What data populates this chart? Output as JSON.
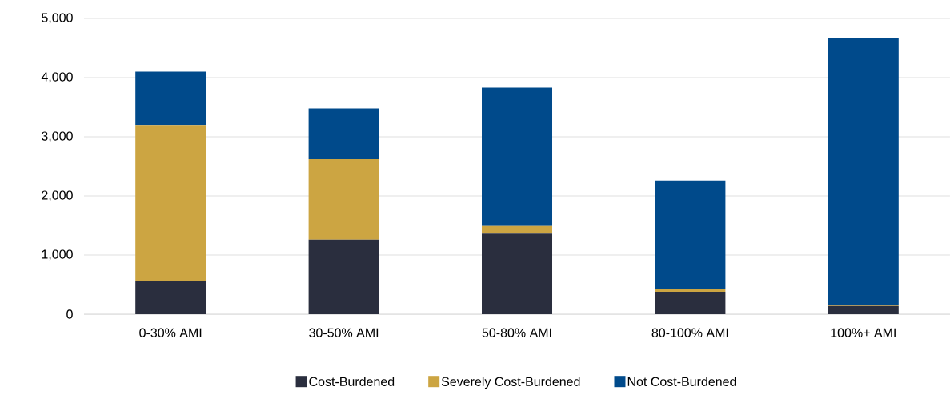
{
  "chart_data": {
    "type": "bar",
    "stacked": true,
    "categories": [
      "0-30% AMI",
      "30-50% AMI",
      "50-80% AMI",
      "80-100% AMI",
      "100%+ AMI"
    ],
    "series": [
      {
        "name": "Cost-Burdened",
        "color": "#2a2e3e",
        "values": [
          560,
          1260,
          1360,
          380,
          140
        ]
      },
      {
        "name": "Severely Cost-Burdened",
        "color": "#cca542",
        "values": [
          2640,
          1360,
          130,
          50,
          10
        ]
      },
      {
        "name": "Not Cost-Burdened",
        "color": "#004a8b",
        "values": [
          900,
          860,
          2340,
          1830,
          4520
        ]
      }
    ],
    "ylim": [
      0,
      5000
    ],
    "yticks": [
      0,
      {
        "value": 1000,
        "label": "1,000"
      },
      {
        "value": 2000,
        "label": "2,000"
      },
      {
        "value": 3000,
        "label": "3,000"
      },
      {
        "value": 4000,
        "label": "4,000"
      },
      {
        "value": 5000,
        "label": "5,000"
      }
    ],
    "grid": "y",
    "legend": "bottom"
  }
}
